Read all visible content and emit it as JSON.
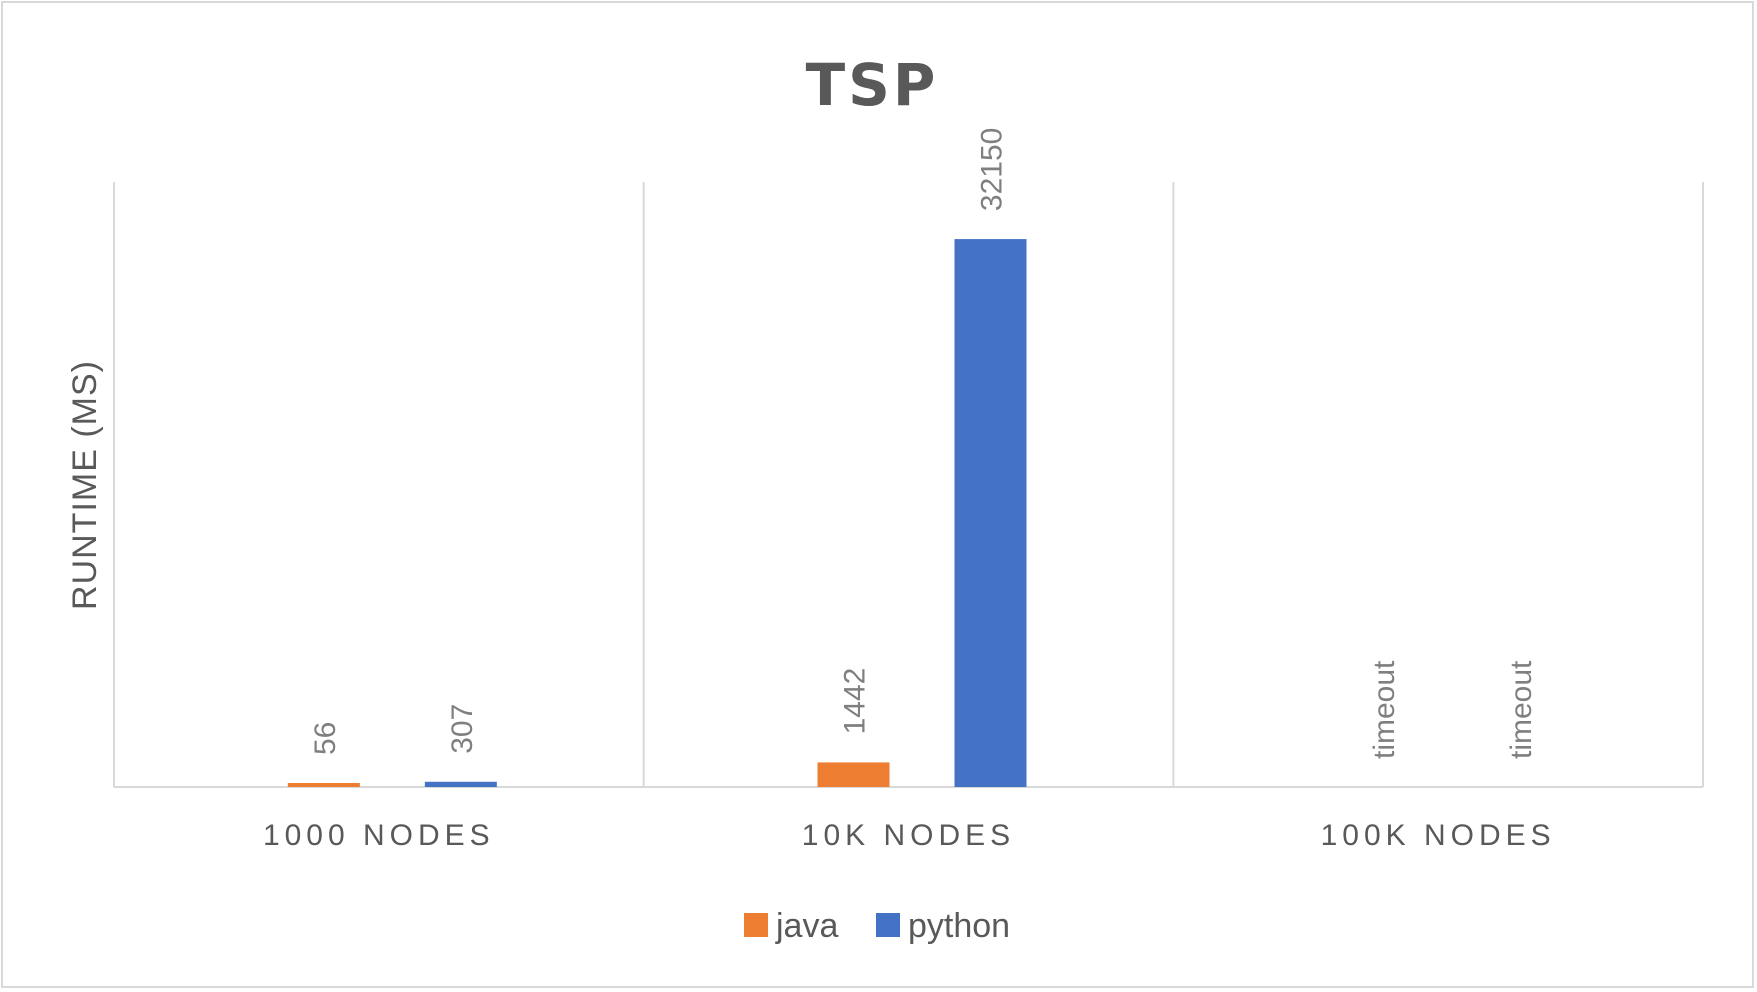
{
  "chart_data": {
    "type": "bar",
    "title": "TSP",
    "xlabel": "",
    "ylabel": "RUNTIME (MS)",
    "categories": [
      "1000 NODES",
      "10K NODES",
      "100K NODES"
    ],
    "series": [
      {
        "name": "java",
        "color": "#ed7d31",
        "values": [
          56,
          1442,
          null
        ],
        "labels": [
          "56",
          "1442",
          "timeout"
        ]
      },
      {
        "name": "python",
        "color": "#4472c4",
        "values": [
          307,
          32150,
          null
        ],
        "labels": [
          "307",
          "32150",
          "timeout"
        ]
      }
    ],
    "ylim": [
      0,
      35500
    ],
    "grid": "vertical category separators",
    "legend_position": "bottom"
  }
}
